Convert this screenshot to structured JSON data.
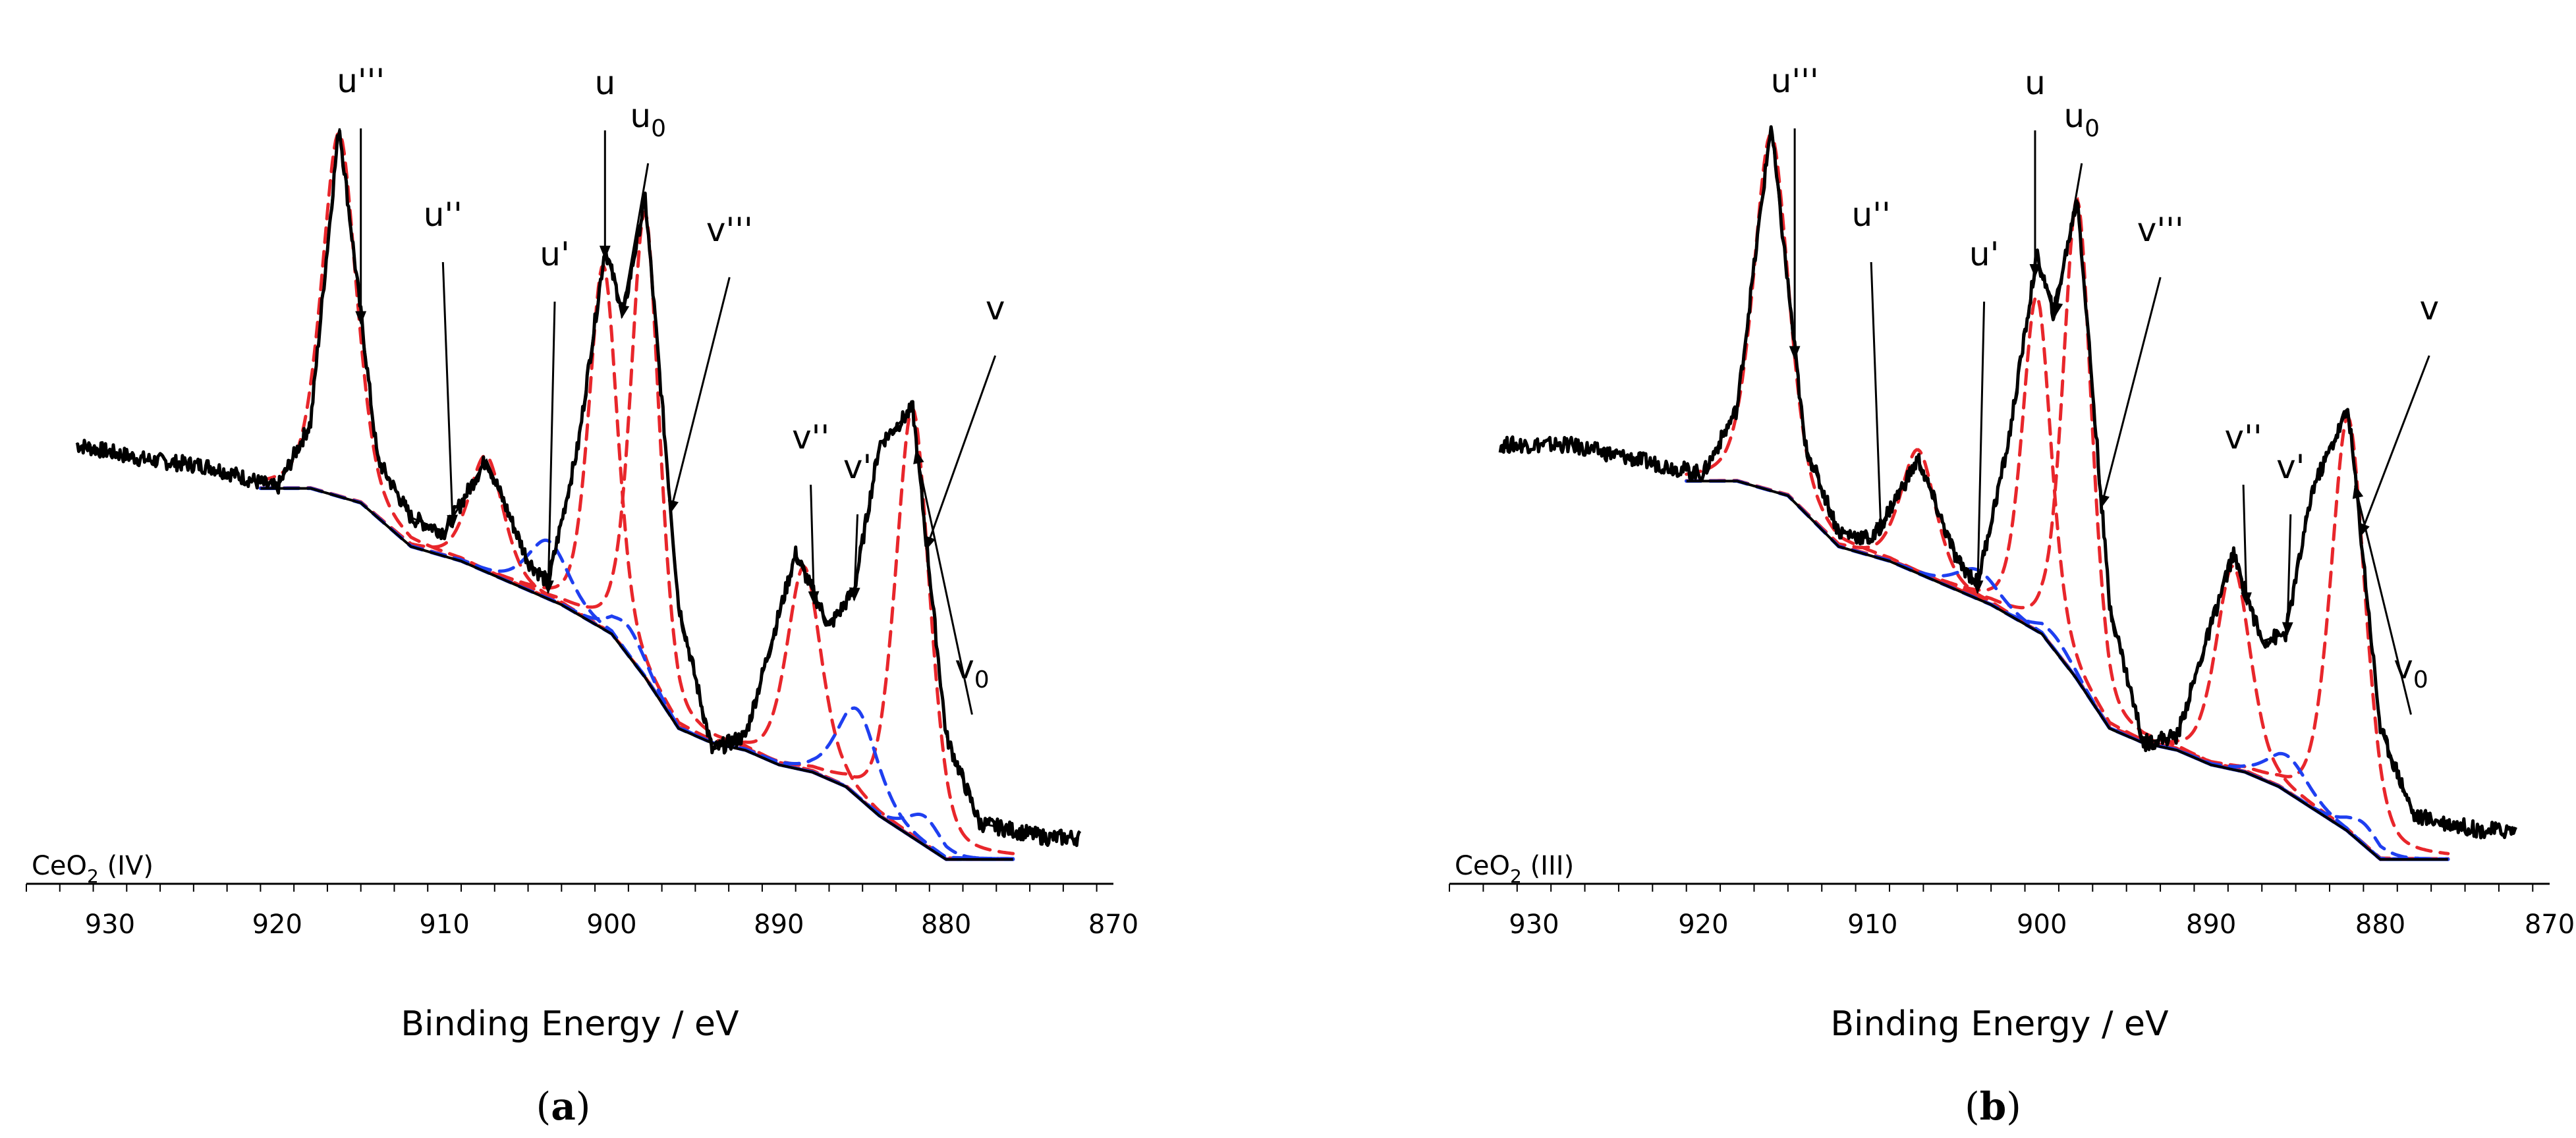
{
  "figure": {
    "panels": [
      {
        "caption_letter": "a",
        "sample_label": "CeO",
        "sample_sub": "2",
        "sample_rest": " (IV)"
      },
      {
        "caption_letter": "b",
        "sample_label": "CeO",
        "sample_sub": "2",
        "sample_rest": " (III)"
      }
    ],
    "colors": {
      "data": "#000000",
      "envelope": "#000000",
      "background": "#000000",
      "fit_components": "#e8262b",
      "ce3_components": "#1f3ff0"
    }
  },
  "chart_data": [
    {
      "type": "line",
      "title": "",
      "sample": "CeO2 (IV)",
      "xlabel": "Binding Energy / eV",
      "ylabel": "",
      "xlim": [
        935,
        870
      ],
      "x_reversed": true,
      "x_ticks": [
        "930",
        "920",
        "910",
        "900",
        "890",
        "880",
        "870"
      ],
      "y_axis_shown": false,
      "series": [
        {
          "name": "measured spectrum",
          "color": "#000000",
          "x": [
            932,
            928,
            924,
            920,
            918,
            916.3,
            914,
            912,
            910,
            907.5,
            905,
            903.8,
            902,
            900.4,
            899.3,
            898,
            896,
            894,
            892,
            889,
            887,
            885.5,
            884,
            882,
            880,
            878,
            876,
            874,
            872
          ],
          "y": [
            0.52,
            0.5,
            0.49,
            0.46,
            0.55,
            0.96,
            0.5,
            0.42,
            0.4,
            0.5,
            0.36,
            0.33,
            0.52,
            0.79,
            0.7,
            0.86,
            0.3,
            0.1,
            0.12,
            0.37,
            0.27,
            0.32,
            0.52,
            0.57,
            0.12,
            0.0,
            -0.01,
            -0.02,
            -0.02
          ]
        },
        {
          "name": "background",
          "color": "#000000",
          "x": [
            921,
            918,
            915,
            912,
            909,
            906,
            903,
            900,
            898,
            896,
            894,
            892,
            890,
            888,
            886,
            884,
            882,
            880,
            878,
            876
          ],
          "y": [
            0.46,
            0.46,
            0.44,
            0.38,
            0.36,
            0.33,
            0.3,
            0.26,
            0.2,
            0.13,
            0.11,
            0.1,
            0.08,
            0.07,
            0.05,
            0.01,
            -0.02,
            -0.05,
            -0.05,
            -0.05
          ]
        }
      ],
      "components_red": [
        {
          "name": "u'''",
          "center": 916.3,
          "height": 0.5
        },
        {
          "name": "u''",
          "center": 907.5,
          "height": 0.16
        },
        {
          "name": "u",
          "center": 900.5,
          "height": 0.5
        },
        {
          "name": "v'''",
          "center": 898.0,
          "height": 0.64
        },
        {
          "name": "v''",
          "center": 888.5,
          "height": 0.28
        },
        {
          "name": "v",
          "center": 882.0,
          "height": 0.59
        }
      ],
      "components_blue": [
        {
          "name": "u'",
          "center": 903.8,
          "height": 0.08
        },
        {
          "name": "u0",
          "center": 899.0,
          "height": 0.04
        },
        {
          "name": "v'",
          "center": 885.3,
          "height": 0.12
        },
        {
          "name": "v0",
          "center": 881.3,
          "height": 0.04
        }
      ],
      "annotations": [
        {
          "label": "u'''",
          "sub": "",
          "target_x": 915.0
        },
        {
          "label": "u''",
          "sub": "",
          "target_x": 909.5
        },
        {
          "label": "u'",
          "sub": "",
          "target_x": 903.8
        },
        {
          "label": "u",
          "sub": "",
          "target_x": 900.4
        },
        {
          "label": "u",
          "sub": "0",
          "target_x": 899.4
        },
        {
          "label": "v'''",
          "sub": "",
          "target_x": 896.5
        },
        {
          "label": "v''",
          "sub": "",
          "target_x": 887.9
        },
        {
          "label": "v'",
          "sub": "",
          "target_x": 885.5
        },
        {
          "label": "v",
          "sub": "",
          "target_x": 881.2
        },
        {
          "label": "v",
          "sub": "0",
          "target_x": 881.8
        }
      ]
    },
    {
      "type": "line",
      "title": "",
      "sample": "CeO2 (III)",
      "xlabel": "Binding Energy / eV",
      "ylabel": "",
      "xlim": [
        935,
        870
      ],
      "x_reversed": true,
      "x_ticks": [
        "930",
        "920",
        "910",
        "900",
        "890",
        "880",
        "870"
      ],
      "y_axis_shown": false,
      "series": [
        {
          "name": "measured spectrum",
          "color": "#000000",
          "x": [
            932,
            928,
            924,
            920,
            918,
            916.0,
            914,
            912,
            910,
            907.3,
            905,
            903.8,
            902,
            900.3,
            899.3,
            897.9,
            896,
            894,
            892,
            888.7,
            887,
            885.6,
            884,
            881.9,
            880,
            878,
            876,
            874,
            872
          ],
          "y": [
            0.52,
            0.52,
            0.5,
            0.48,
            0.57,
            0.96,
            0.52,
            0.4,
            0.39,
            0.5,
            0.36,
            0.33,
            0.52,
            0.78,
            0.7,
            0.86,
            0.3,
            0.11,
            0.12,
            0.37,
            0.25,
            0.26,
            0.46,
            0.57,
            0.13,
            0.01,
            0.0,
            -0.01,
            -0.01
          ]
        },
        {
          "name": "background",
          "color": "#000000",
          "x": [
            921,
            918,
            915,
            912,
            909,
            906,
            903,
            900,
            898,
            896,
            894,
            892,
            890,
            888,
            886,
            884,
            882,
            880,
            878,
            876
          ],
          "y": [
            0.47,
            0.47,
            0.45,
            0.38,
            0.36,
            0.33,
            0.3,
            0.26,
            0.2,
            0.13,
            0.11,
            0.1,
            0.08,
            0.07,
            0.05,
            0.02,
            -0.01,
            -0.05,
            -0.05,
            -0.05
          ]
        }
      ],
      "components_red": [
        {
          "name": "u'''",
          "center": 916.0,
          "height": 0.49
        },
        {
          "name": "u''",
          "center": 907.3,
          "height": 0.17
        },
        {
          "name": "u",
          "center": 900.3,
          "height": 0.46
        },
        {
          "name": "v'''",
          "center": 897.9,
          "height": 0.66
        },
        {
          "name": "v''",
          "center": 888.7,
          "height": 0.28
        },
        {
          "name": "v",
          "center": 881.9,
          "height": 0.57
        }
      ],
      "components_blue": [
        {
          "name": "u'",
          "center": 903.8,
          "height": 0.04
        },
        {
          "name": "u0",
          "center": 899.2,
          "height": 0.02
        },
        {
          "name": "v'",
          "center": 885.5,
          "height": 0.05
        },
        {
          "name": "v0",
          "center": 881.0,
          "height": 0.03
        }
      ],
      "annotations": [
        {
          "label": "u'''",
          "sub": "",
          "target_x": 914.6
        },
        {
          "label": "u''",
          "sub": "",
          "target_x": 909.5
        },
        {
          "label": "u'",
          "sub": "",
          "target_x": 903.8
        },
        {
          "label": "u",
          "sub": "",
          "target_x": 900.4
        },
        {
          "label": "u",
          "sub": "0",
          "target_x": 899.2
        },
        {
          "label": "v'''",
          "sub": "",
          "target_x": 896.5
        },
        {
          "label": "v''",
          "sub": "",
          "target_x": 887.9
        },
        {
          "label": "v'",
          "sub": "",
          "target_x": 885.5
        },
        {
          "label": "v",
          "sub": "",
          "target_x": 881.2
        },
        {
          "label": "v",
          "sub": "0",
          "target_x": 881.5
        }
      ]
    }
  ]
}
